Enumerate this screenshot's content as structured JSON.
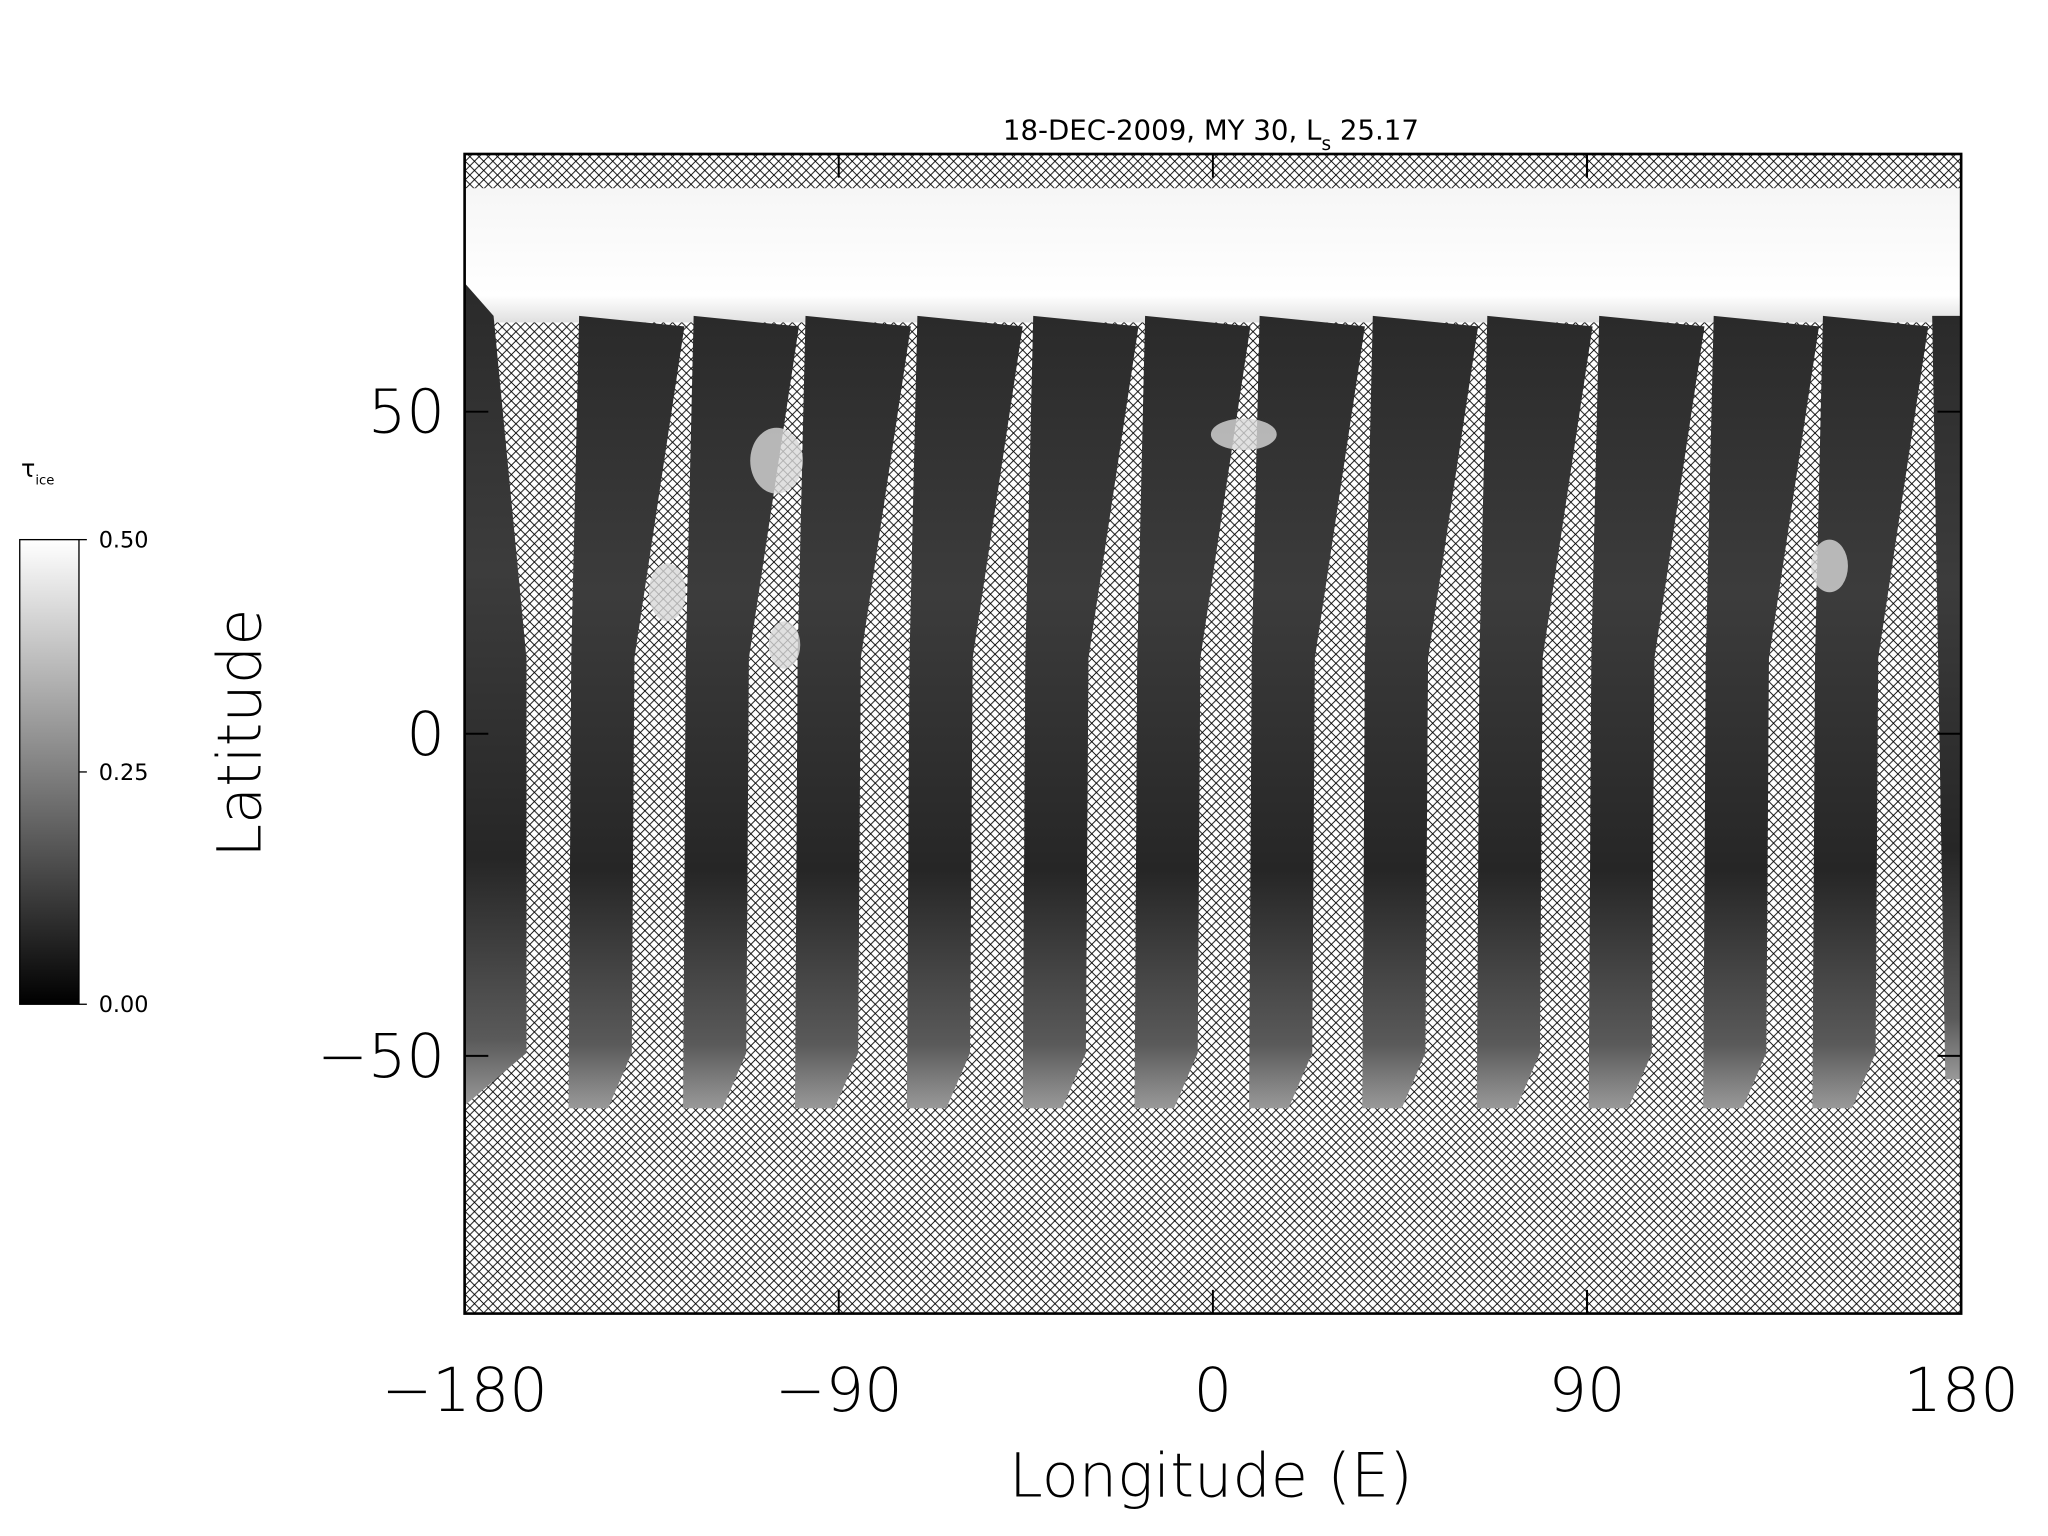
{
  "chart_data": {
    "type": "heatmap",
    "title": {
      "text": "18-DEC-2009, MY 30,  L",
      "subscript": "s",
      "rest": " 25.17"
    },
    "xlabel": "Longitude (E)",
    "ylabel": "Latitude",
    "xlim": [
      -180,
      180
    ],
    "xticks": [
      {
        "value": -180,
        "label": "−180"
      },
      {
        "value": -90,
        "label": "−90"
      },
      0,
      90,
      180
    ],
    "ylim": [
      -90,
      90
    ],
    "yticks": [
      {
        "value": -50,
        "label": "−50"
      },
      0,
      50
    ],
    "colorbar": {
      "label": "τ",
      "label_subscript": "ice",
      "clim": [
        0,
        0.5
      ],
      "ticks": [
        {
          "value": 0,
          "label": "0.00"
        },
        {
          "value": 0.25,
          "label": "0.25"
        },
        {
          "value": 0.5,
          "label": "0.50"
        }
      ],
      "colors": [
        "#000000",
        "#ffffff"
      ]
    }
  }
}
